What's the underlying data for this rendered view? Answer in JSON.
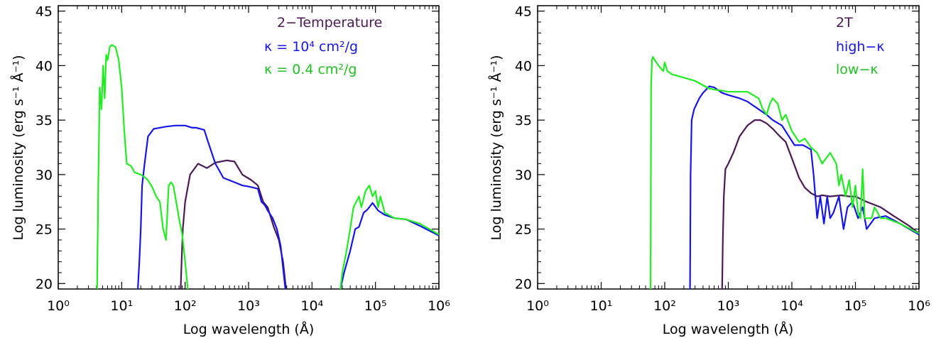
{
  "chart_data": [
    {
      "type": "line",
      "xscale": "log",
      "xlim": [
        1,
        1000000
      ],
      "ylim": [
        19.5,
        45.5
      ],
      "xlabel": "Log wavelength (Å)",
      "ylabel": "Log luminosity (erg s⁻¹ Å⁻¹)",
      "x_ticks": [
        "10⁰",
        "10¹",
        "10²",
        "10³",
        "10⁴",
        "10⁵",
        "10⁶"
      ],
      "y_ticks": [
        "20",
        "25",
        "30",
        "35",
        "40",
        "45"
      ],
      "legend": [
        "2−Temperature",
        "κ = 10⁴ cm²/g",
        "κ = 0.4 cm²/g"
      ],
      "series": [
        {
          "name": "2−Temperature",
          "color": "#4b1a55",
          "points": [
            [
              85,
              19.5
            ],
            [
              88,
              22
            ],
            [
              92,
              25
            ],
            [
              100,
              27.5
            ],
            [
              120,
              30
            ],
            [
              160,
              31
            ],
            [
              220,
              30.6
            ],
            [
              300,
              31.1
            ],
            [
              450,
              31.3
            ],
            [
              600,
              31.2
            ],
            [
              800,
              30
            ],
            [
              1100,
              29.5
            ],
            [
              1400,
              29
            ],
            [
              1700,
              27.5
            ],
            [
              2000,
              27
            ],
            [
              2500,
              25.2
            ],
            [
              3000,
              24
            ],
            [
              3500,
              22
            ],
            [
              3900,
              19.5
            ]
          ]
        },
        {
          "name": "κ = 10⁴ cm²/g",
          "color": "#1616e6",
          "points": [
            [
              18,
              19.5
            ],
            [
              19,
              22
            ],
            [
              20,
              25
            ],
            [
              21,
              29
            ],
            [
              23,
              31
            ],
            [
              26,
              33.5
            ],
            [
              32,
              34.2
            ],
            [
              40,
              34.3
            ],
            [
              50,
              34.4
            ],
            [
              70,
              34.5
            ],
            [
              100,
              34.5
            ],
            [
              130,
              34.3
            ],
            [
              150,
              34.3
            ],
            [
              200,
              34.1
            ],
            [
              230,
              33
            ],
            [
              300,
              31
            ],
            [
              400,
              29.7
            ],
            [
              600,
              29.3
            ],
            [
              800,
              29
            ],
            [
              1000,
              28.9
            ],
            [
              1200,
              28.8
            ],
            [
              1400,
              28.7
            ],
            [
              1600,
              27.5
            ],
            [
              1800,
              27.2
            ],
            [
              2000,
              26.7
            ],
            [
              2400,
              26
            ],
            [
              2800,
              25
            ],
            [
              3200,
              23.5
            ],
            [
              3800,
              19.5
            ],
            [
              28000,
              19.5
            ],
            [
              32000,
              21
            ],
            [
              40000,
              23
            ],
            [
              48000,
              25
            ],
            [
              55000,
              25.2
            ],
            [
              65000,
              26.5
            ],
            [
              75000,
              26.8
            ],
            [
              90000,
              27.4
            ],
            [
              110000,
              26.7
            ],
            [
              140000,
              26.3
            ],
            [
              200000,
              26
            ],
            [
              300000,
              25.9
            ],
            [
              500000,
              25.3
            ],
            [
              1000000,
              24.4
            ]
          ]
        },
        {
          "name": "κ = 0.4 cm²/g",
          "color": "#22ec22",
          "points": [
            [
              4.1,
              19.5
            ],
            [
              4.3,
              30
            ],
            [
              4.5,
              38
            ],
            [
              4.8,
              36
            ],
            [
              5.1,
              40
            ],
            [
              5.4,
              37
            ],
            [
              5.7,
              41
            ],
            [
              6,
              40.5
            ],
            [
              6.5,
              41.7
            ],
            [
              7,
              41.9
            ],
            [
              8,
              41.7
            ],
            [
              9,
              40.5
            ],
            [
              10,
              38
            ],
            [
              11,
              34
            ],
            [
              12,
              31
            ],
            [
              14,
              30.8
            ],
            [
              16,
              30.2
            ],
            [
              20,
              30
            ],
            [
              25,
              29.6
            ],
            [
              30,
              28.9
            ],
            [
              35,
              28
            ],
            [
              40,
              27.5
            ],
            [
              45,
              25
            ],
            [
              50,
              24
            ],
            [
              55,
              29
            ],
            [
              60,
              29.3
            ],
            [
              65,
              29
            ],
            [
              70,
              28
            ],
            [
              80,
              26
            ],
            [
              90,
              24.5
            ],
            [
              100,
              22
            ],
            [
              110,
              19.5
            ],
            [
              28000,
              19.5
            ],
            [
              30000,
              21
            ],
            [
              35000,
              23
            ],
            [
              40000,
              25
            ],
            [
              45000,
              27
            ],
            [
              50000,
              27.5
            ],
            [
              55000,
              28
            ],
            [
              60000,
              27
            ],
            [
              70000,
              28.5
            ],
            [
              80000,
              29
            ],
            [
              90000,
              28
            ],
            [
              100000,
              28.5
            ],
            [
              110000,
              27
            ],
            [
              120000,
              28
            ],
            [
              140000,
              26.5
            ],
            [
              200000,
              26
            ],
            [
              300000,
              25.9
            ],
            [
              500000,
              25.5
            ],
            [
              1000000,
              24.5
            ]
          ]
        }
      ]
    },
    {
      "type": "line",
      "xscale": "log",
      "xlim": [
        1,
        1000000
      ],
      "ylim": [
        19.5,
        45.5
      ],
      "xlabel": "Log wavelength (Å)",
      "ylabel": "Log luminosity (erg s⁻¹ Å⁻¹)",
      "x_ticks": [
        "10⁰",
        "10¹",
        "10²",
        "10³",
        "10⁴",
        "10⁵",
        "10⁶"
      ],
      "y_ticks": [
        "20",
        "25",
        "30",
        "35",
        "40",
        "45"
      ],
      "legend": [
        "2T",
        "high−κ",
        "low−κ"
      ],
      "series": [
        {
          "name": "2T",
          "color": "#4b1a55",
          "points": [
            [
              800,
              19.5
            ],
            [
              820,
              24
            ],
            [
              850,
              28
            ],
            [
              900,
              30.5
            ],
            [
              1000,
              31
            ],
            [
              1200,
              32
            ],
            [
              1500,
              33.5
            ],
            [
              2000,
              34.5
            ],
            [
              2600,
              35
            ],
            [
              3200,
              35
            ],
            [
              4000,
              34.7
            ],
            [
              5000,
              34.2
            ],
            [
              6500,
              33.5
            ],
            [
              8000,
              33
            ],
            [
              10000,
              31.5
            ],
            [
              13000,
              29.7
            ],
            [
              16000,
              28.8
            ],
            [
              20000,
              28.3
            ],
            [
              25000,
              28
            ],
            [
              30000,
              28.1
            ],
            [
              40000,
              28
            ],
            [
              60000,
              28.1
            ],
            [
              80000,
              28
            ],
            [
              100000,
              28
            ],
            [
              150000,
              27.5
            ],
            [
              250000,
              27
            ],
            [
              400000,
              26.2
            ],
            [
              700000,
              25.3
            ],
            [
              1000000,
              24.6
            ]
          ]
        },
        {
          "name": "high−κ",
          "color": "#1616e6",
          "points": [
            [
              250,
              19.5
            ],
            [
              255,
              30
            ],
            [
              265,
              35
            ],
            [
              290,
              36
            ],
            [
              350,
              37
            ],
            [
              400,
              37.5
            ],
            [
              500,
              38.1
            ],
            [
              600,
              38
            ],
            [
              800,
              37.5
            ],
            [
              1000,
              37.3
            ],
            [
              1500,
              37
            ],
            [
              2000,
              36.7
            ],
            [
              3000,
              36
            ],
            [
              4000,
              35.5
            ],
            [
              5000,
              35
            ],
            [
              7000,
              34.5
            ],
            [
              9000,
              33.5
            ],
            [
              11000,
              32.7
            ],
            [
              15000,
              32.7
            ],
            [
              20000,
              32.3
            ],
            [
              22000,
              30
            ],
            [
              25000,
              26
            ],
            [
              28000,
              28
            ],
            [
              32000,
              25.5
            ],
            [
              36000,
              28
            ],
            [
              40000,
              26
            ],
            [
              45000,
              26.5
            ],
            [
              55000,
              28
            ],
            [
              65000,
              25
            ],
            [
              75000,
              27
            ],
            [
              90000,
              27.5
            ],
            [
              110000,
              26
            ],
            [
              130000,
              27
            ],
            [
              150000,
              25
            ],
            [
              200000,
              26
            ],
            [
              300000,
              26.2
            ],
            [
              500000,
              25.5
            ],
            [
              1000000,
              24.5
            ]
          ]
        },
        {
          "name": "low−κ",
          "color": "#22ec22",
          "points": [
            [
              60,
              19.5
            ],
            [
              61,
              38
            ],
            [
              63,
              40.5
            ],
            [
              65,
              40.8
            ],
            [
              70,
              40.5
            ],
            [
              80,
              40
            ],
            [
              95,
              39.5
            ],
            [
              100,
              40.3
            ],
            [
              110,
              39.5
            ],
            [
              130,
              39.2
            ],
            [
              200,
              38.9
            ],
            [
              300,
              38.6
            ],
            [
              400,
              38.2
            ],
            [
              500,
              37.9
            ],
            [
              600,
              37.8
            ],
            [
              800,
              37.7
            ],
            [
              1000,
              37.6
            ],
            [
              2000,
              37.6
            ],
            [
              3000,
              37
            ],
            [
              3500,
              36
            ],
            [
              4000,
              35.5
            ],
            [
              4500,
              36.5
            ],
            [
              5000,
              37
            ],
            [
              6000,
              36.5
            ],
            [
              7000,
              35
            ],
            [
              8000,
              35.5
            ],
            [
              10000,
              34
            ],
            [
              13000,
              33
            ],
            [
              16000,
              33.3
            ],
            [
              20000,
              32.5
            ],
            [
              25000,
              32
            ],
            [
              30000,
              31
            ],
            [
              40000,
              32
            ],
            [
              50000,
              31
            ],
            [
              55000,
              29
            ],
            [
              60000,
              30
            ],
            [
              70000,
              28
            ],
            [
              80000,
              29.5
            ],
            [
              90000,
              27
            ],
            [
              100000,
              29
            ],
            [
              110000,
              26.5
            ],
            [
              120000,
              26
            ],
            [
              130000,
              30.5
            ],
            [
              140000,
              26
            ],
            [
              180000,
              26
            ],
            [
              200000,
              27
            ],
            [
              250000,
              26
            ],
            [
              300000,
              26
            ],
            [
              500000,
              25.5
            ],
            [
              1000000,
              24.6
            ]
          ]
        }
      ]
    }
  ]
}
